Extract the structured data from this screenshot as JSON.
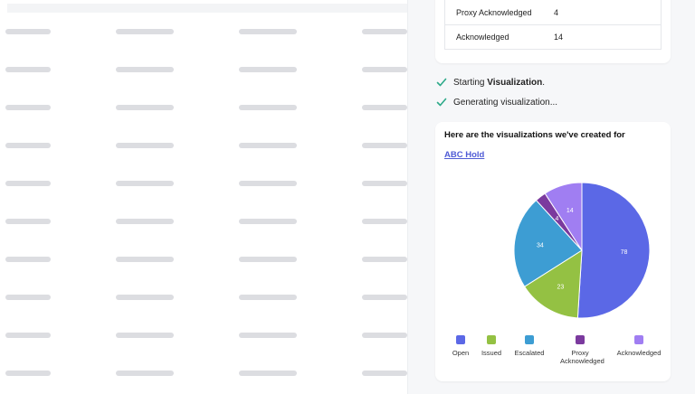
{
  "summary_table": {
    "rows": [
      {
        "label": "Proxy Acknowledged",
        "value": "4"
      },
      {
        "label": "Acknowledged",
        "value": "14"
      }
    ]
  },
  "steps": [
    {
      "prefix": "Starting ",
      "bold": "Visualization",
      "suffix": "."
    },
    {
      "prefix": "Generating visualization...",
      "bold": "",
      "suffix": ""
    }
  ],
  "visualization": {
    "title": "Here are the visualizations we've created for",
    "link": "ABC Hold"
  },
  "chart_data": {
    "type": "pie",
    "title": "",
    "slices": [
      {
        "label": "Open",
        "value": 78,
        "color": "#5b68e6"
      },
      {
        "label": "Issued",
        "value": 23,
        "color": "#94c143"
      },
      {
        "label": "Escalated",
        "value": 34,
        "color": "#3d9dd3"
      },
      {
        "label": "Proxy Acknowledged",
        "value": 4,
        "color": "#7b3a9e"
      },
      {
        "label": "Acknowledged",
        "value": 14,
        "color": "#a07ef2"
      }
    ],
    "legend_placement": "bottom"
  },
  "icons": {
    "step_check": "check-icon"
  },
  "colors": {
    "check": "#2eaa8a",
    "link": "#4f5bd5",
    "skeleton": "#dcdde1"
  }
}
